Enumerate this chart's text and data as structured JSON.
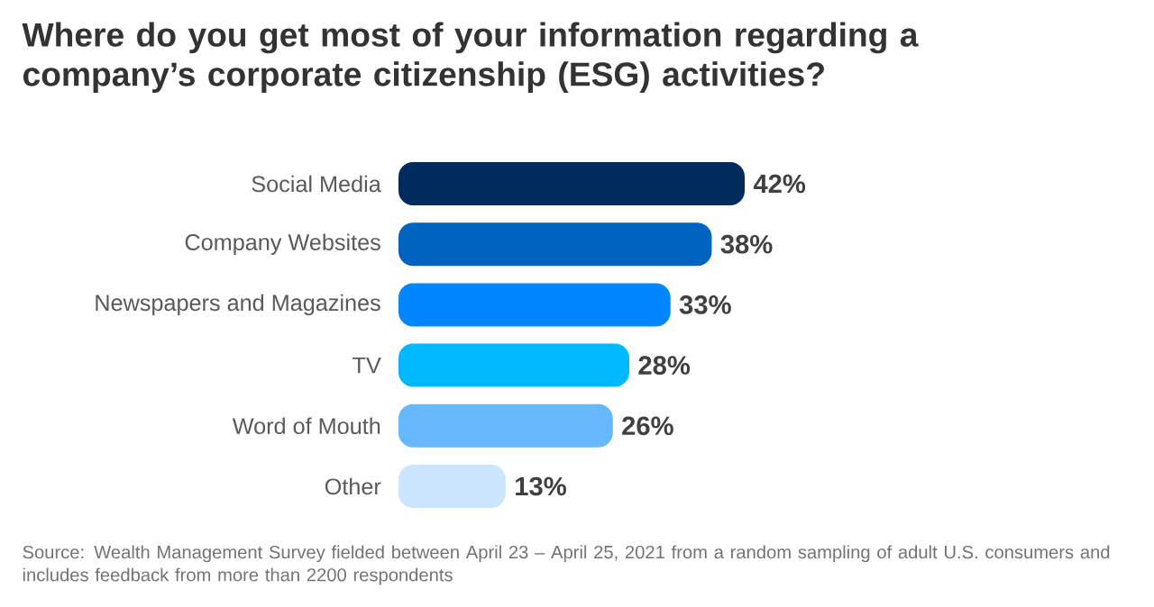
{
  "chart_data": {
    "type": "bar",
    "orientation": "horizontal",
    "title": "Where do you get most of your information regarding a company’s corporate citizenship (ESG) activities?",
    "categories": [
      "Social Media",
      "Company Websites",
      "Newspapers and Magazines",
      "TV",
      "Word of Mouth",
      "Other"
    ],
    "values": [
      42,
      38,
      33,
      28,
      26,
      13
    ],
    "value_labels": [
      "42%",
      "38%",
      "33%",
      "28%",
      "26%",
      "13%"
    ],
    "colors": [
      "#002b5c",
      "#0063bf",
      "#0087ff",
      "#00b8ff",
      "#66b8ff",
      "#cce6ff"
    ],
    "annotations": [
      "Source: Wealth Management Survey fielded between April 23 – April 25, 2021 from a random sampling of adult U.S. consumers and includes feedback from more than 2200 respondents"
    ]
  }
}
